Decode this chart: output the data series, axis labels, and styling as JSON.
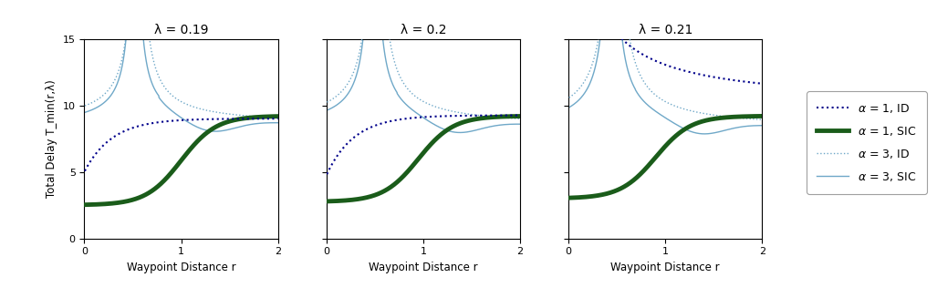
{
  "lambdas": [
    0.19,
    0.2,
    0.21
  ],
  "titles": [
    "λ = 0.19",
    "λ = 0.2",
    "λ = 0.21"
  ],
  "ylabel": "Total Delay T_min(r,λ)",
  "xlabel": "Waypoint Distance r",
  "ylim": [
    0,
    15
  ],
  "xlim": [
    0,
    2
  ],
  "yticks": [
    0,
    5,
    10,
    15
  ],
  "xticks": [
    0,
    1,
    2
  ],
  "color_alpha1_ID": "#00008B",
  "color_alpha1_SIC": "#1a5c1a",
  "color_alpha3": "#6fa8c8",
  "figsize": [
    10.27,
    3.27
  ],
  "dpi": 100,
  "lw_a1_SIC": 3.5,
  "lw_a1_ID": 1.5,
  "lw_a3": 1.0
}
